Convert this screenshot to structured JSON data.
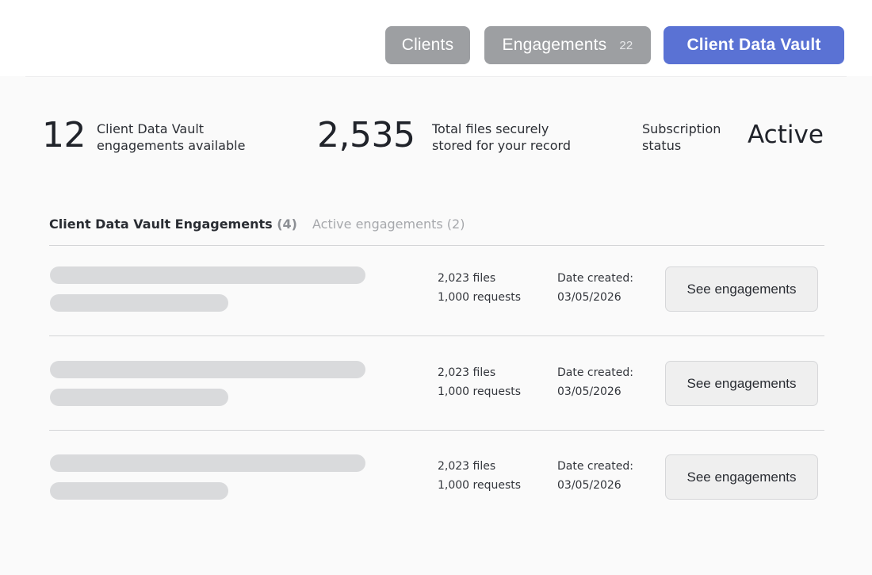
{
  "nav": {
    "clients_label": "Clients",
    "engagements_label": "Engagements",
    "engagements_count": "22",
    "vault_label": "Client Data Vault"
  },
  "stats": {
    "engagements_available": {
      "value": "12",
      "label_line1": "Client Data Vault",
      "label_line2": "engagements available"
    },
    "files_stored": {
      "value": "2,535",
      "label_line1": "Total files securely",
      "label_line2": "stored for your record"
    },
    "subscription": {
      "label_line1": "Subscription",
      "label_line2": "status",
      "value": "Active"
    }
  },
  "tabs": [
    {
      "label": "Client Data Vault Engagements",
      "count": "(4)",
      "active": true
    },
    {
      "label": "Active engagements",
      "count": "(2)",
      "active": false
    }
  ],
  "rows": [
    {
      "files": "2,023 files",
      "requests": "1,000 requests",
      "date_label": "Date created:",
      "date": "03/05/2026",
      "action": "See engagements"
    },
    {
      "files": "2,023 files",
      "requests": "1,000 requests",
      "date_label": "Date created:",
      "date": "03/05/2026",
      "action": "See engagements"
    },
    {
      "files": "2,023 files",
      "requests": "1,000 requests",
      "date_label": "Date created:",
      "date": "03/05/2026",
      "action": "See engagements"
    }
  ],
  "colors": {
    "accent": "#5a72d4",
    "nav_inactive": "#9d9fa2",
    "skeleton": "#d9dadc"
  }
}
